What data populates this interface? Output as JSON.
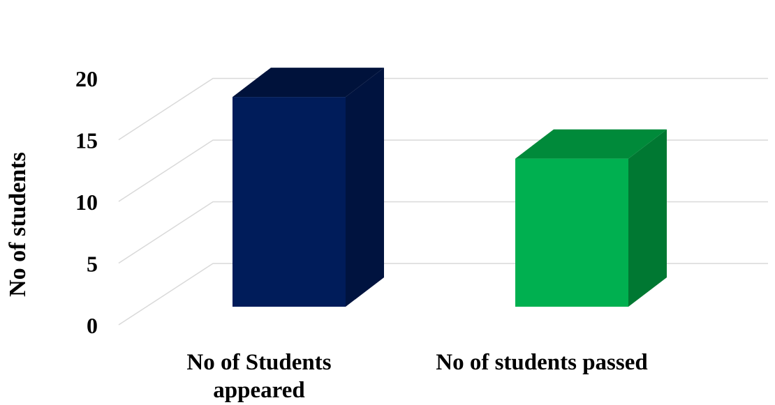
{
  "chart_data": {
    "type": "bar",
    "categories": [
      "No of Students appeared",
      "No of students passed"
    ],
    "category_label_lines": [
      [
        "No of Students",
        "appeared"
      ],
      [
        "No of students passed"
      ]
    ],
    "values": [
      17,
      12
    ],
    "title": "",
    "xlabel": "",
    "ylabel": "No of students",
    "ylim": [
      0,
      20
    ],
    "y_ticks": [
      0,
      5,
      10,
      15,
      20
    ],
    "grid": true,
    "legend": "none",
    "three_d": true,
    "colors": {
      "bars": [
        {
          "front": "#001c5a",
          "side": "#00133f",
          "top": "#00123b"
        },
        {
          "front": "#00b050",
          "side": "#007832",
          "top": "#008a3a"
        }
      ],
      "grid": "#d9d9d9",
      "text": "#000000"
    }
  }
}
